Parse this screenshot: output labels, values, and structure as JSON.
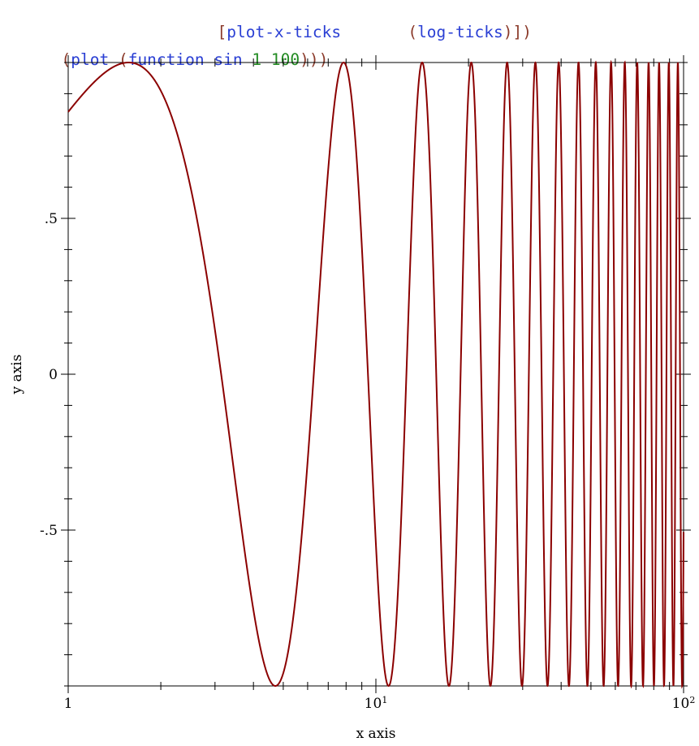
{
  "code": {
    "line1": {
      "open_bracket": "[",
      "fn": "plot-x-ticks",
      "spacer": "       ",
      "open_paren": "(",
      "arg": "log-ticks",
      "close": ")])"
    },
    "line2": {
      "open1": "(",
      "plot": "plot",
      "space1": " ",
      "open2": "(",
      "function": "function",
      "space2": " ",
      "sin": "sin",
      "space3": " ",
      "one": "1",
      "space4": " ",
      "hundred": "100",
      "close": ")))"
    }
  },
  "chart_data": {
    "type": "line",
    "function": "sin",
    "x_range": [
      1,
      100
    ],
    "xlim": [
      1,
      100
    ],
    "ylim": [
      -1,
      1
    ],
    "x_scale": "log",
    "xlabel": "x axis",
    "ylabel": "y axis",
    "x_ticks": [
      {
        "value": 1,
        "label": "1"
      },
      {
        "value": 10,
        "label": "10",
        "sup": "1"
      },
      {
        "value": 100,
        "label": "10",
        "sup": "2"
      }
    ],
    "y_ticks": [
      {
        "value": 0.5,
        "label": ".5"
      },
      {
        "value": 0,
        "label": "0"
      },
      {
        "value": -0.5,
        "label": "-.5"
      }
    ],
    "series": [
      {
        "color": "#8b0000"
      }
    ],
    "grid": false
  }
}
